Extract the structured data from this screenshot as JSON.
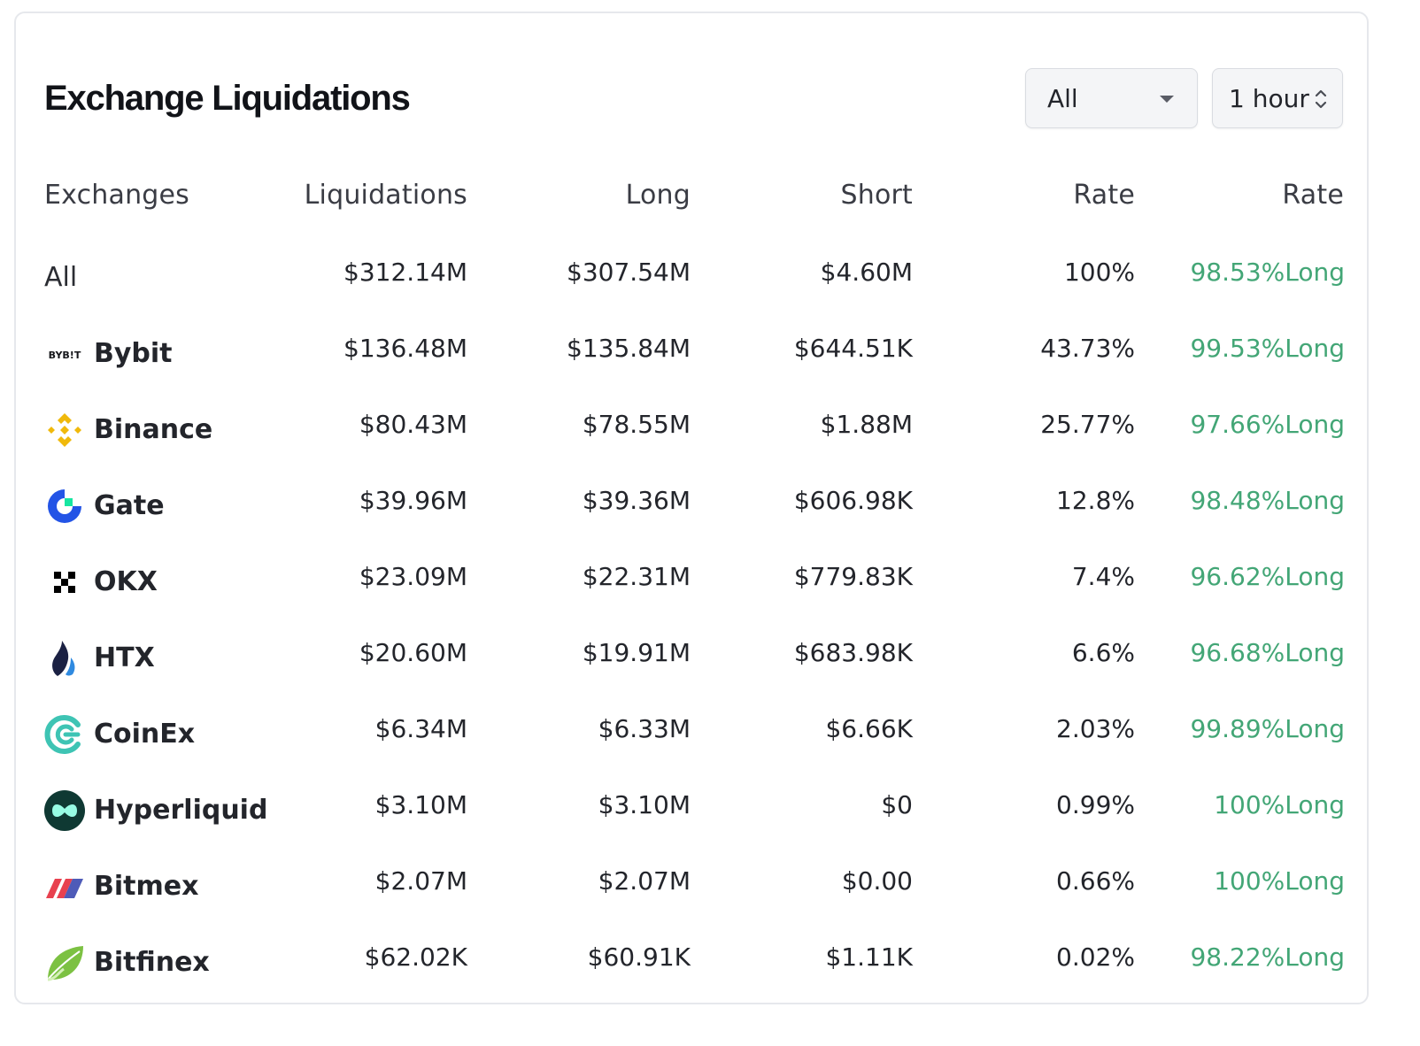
{
  "title": "Exchange Liquidations",
  "filters": {
    "exchange_select": "All",
    "time_select": "1 hour"
  },
  "columns": [
    "Exchanges",
    "Liquidations",
    "Long",
    "Short",
    "Rate",
    "Rate"
  ],
  "rows": [
    {
      "exchange": "All",
      "icon": "",
      "liquidations": "$312.14M",
      "long": "$307.54M",
      "short": "$4.60M",
      "rate": "100%",
      "long_rate": "98.53%Long"
    },
    {
      "exchange": "Bybit",
      "icon": "bybit-logo-icon",
      "liquidations": "$136.48M",
      "long": "$135.84M",
      "short": "$644.51K",
      "rate": "43.73%",
      "long_rate": "99.53%Long"
    },
    {
      "exchange": "Binance",
      "icon": "binance-logo-icon",
      "liquidations": "$80.43M",
      "long": "$78.55M",
      "short": "$1.88M",
      "rate": "25.77%",
      "long_rate": "97.66%Long"
    },
    {
      "exchange": "Gate",
      "icon": "gate-logo-icon",
      "liquidations": "$39.96M",
      "long": "$39.36M",
      "short": "$606.98K",
      "rate": "12.8%",
      "long_rate": "98.48%Long"
    },
    {
      "exchange": "OKX",
      "icon": "okx-logo-icon",
      "liquidations": "$23.09M",
      "long": "$22.31M",
      "short": "$779.83K",
      "rate": "7.4%",
      "long_rate": "96.62%Long"
    },
    {
      "exchange": "HTX",
      "icon": "htx-logo-icon",
      "liquidations": "$20.60M",
      "long": "$19.91M",
      "short": "$683.98K",
      "rate": "6.6%",
      "long_rate": "96.68%Long"
    },
    {
      "exchange": "CoinEx",
      "icon": "coinex-logo-icon",
      "liquidations": "$6.34M",
      "long": "$6.33M",
      "short": "$6.66K",
      "rate": "2.03%",
      "long_rate": "99.89%Long"
    },
    {
      "exchange": "Hyperliquid",
      "icon": "hyperliquid-logo-icon",
      "liquidations": "$3.10M",
      "long": "$3.10M",
      "short": "$0",
      "rate": "0.99%",
      "long_rate": "100%Long"
    },
    {
      "exchange": "Bitmex",
      "icon": "bitmex-logo-icon",
      "liquidations": "$2.07M",
      "long": "$2.07M",
      "short": "$0.00",
      "rate": "0.66%",
      "long_rate": "100%Long"
    },
    {
      "exchange": "Bitfinex",
      "icon": "bitfinex-logo-icon",
      "liquidations": "$62.02K",
      "long": "$60.91K",
      "short": "$1.11K",
      "rate": "0.02%",
      "long_rate": "98.22%Long"
    }
  ],
  "bybit_logo_text": "BYB!T",
  "colors": {
    "long_rate": "#43a676",
    "binance": "#f0b90b",
    "gate": "#2354e6",
    "hyperliquid": "#0f3933",
    "coinex": "#3ec4b4",
    "bitfinex": "#7cc142"
  }
}
